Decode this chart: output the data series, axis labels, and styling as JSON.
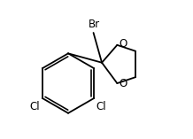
{
  "bg_color": "#ffffff",
  "line_color": "#000000",
  "line_width": 1.3,
  "font_size": 8.5,
  "label_Br": "Br",
  "label_O1": "O",
  "label_O2": "O",
  "label_Cl1": "Cl",
  "label_Cl2": "Cl",
  "figsize": [
    2.18,
    1.57
  ],
  "dpi": 100
}
